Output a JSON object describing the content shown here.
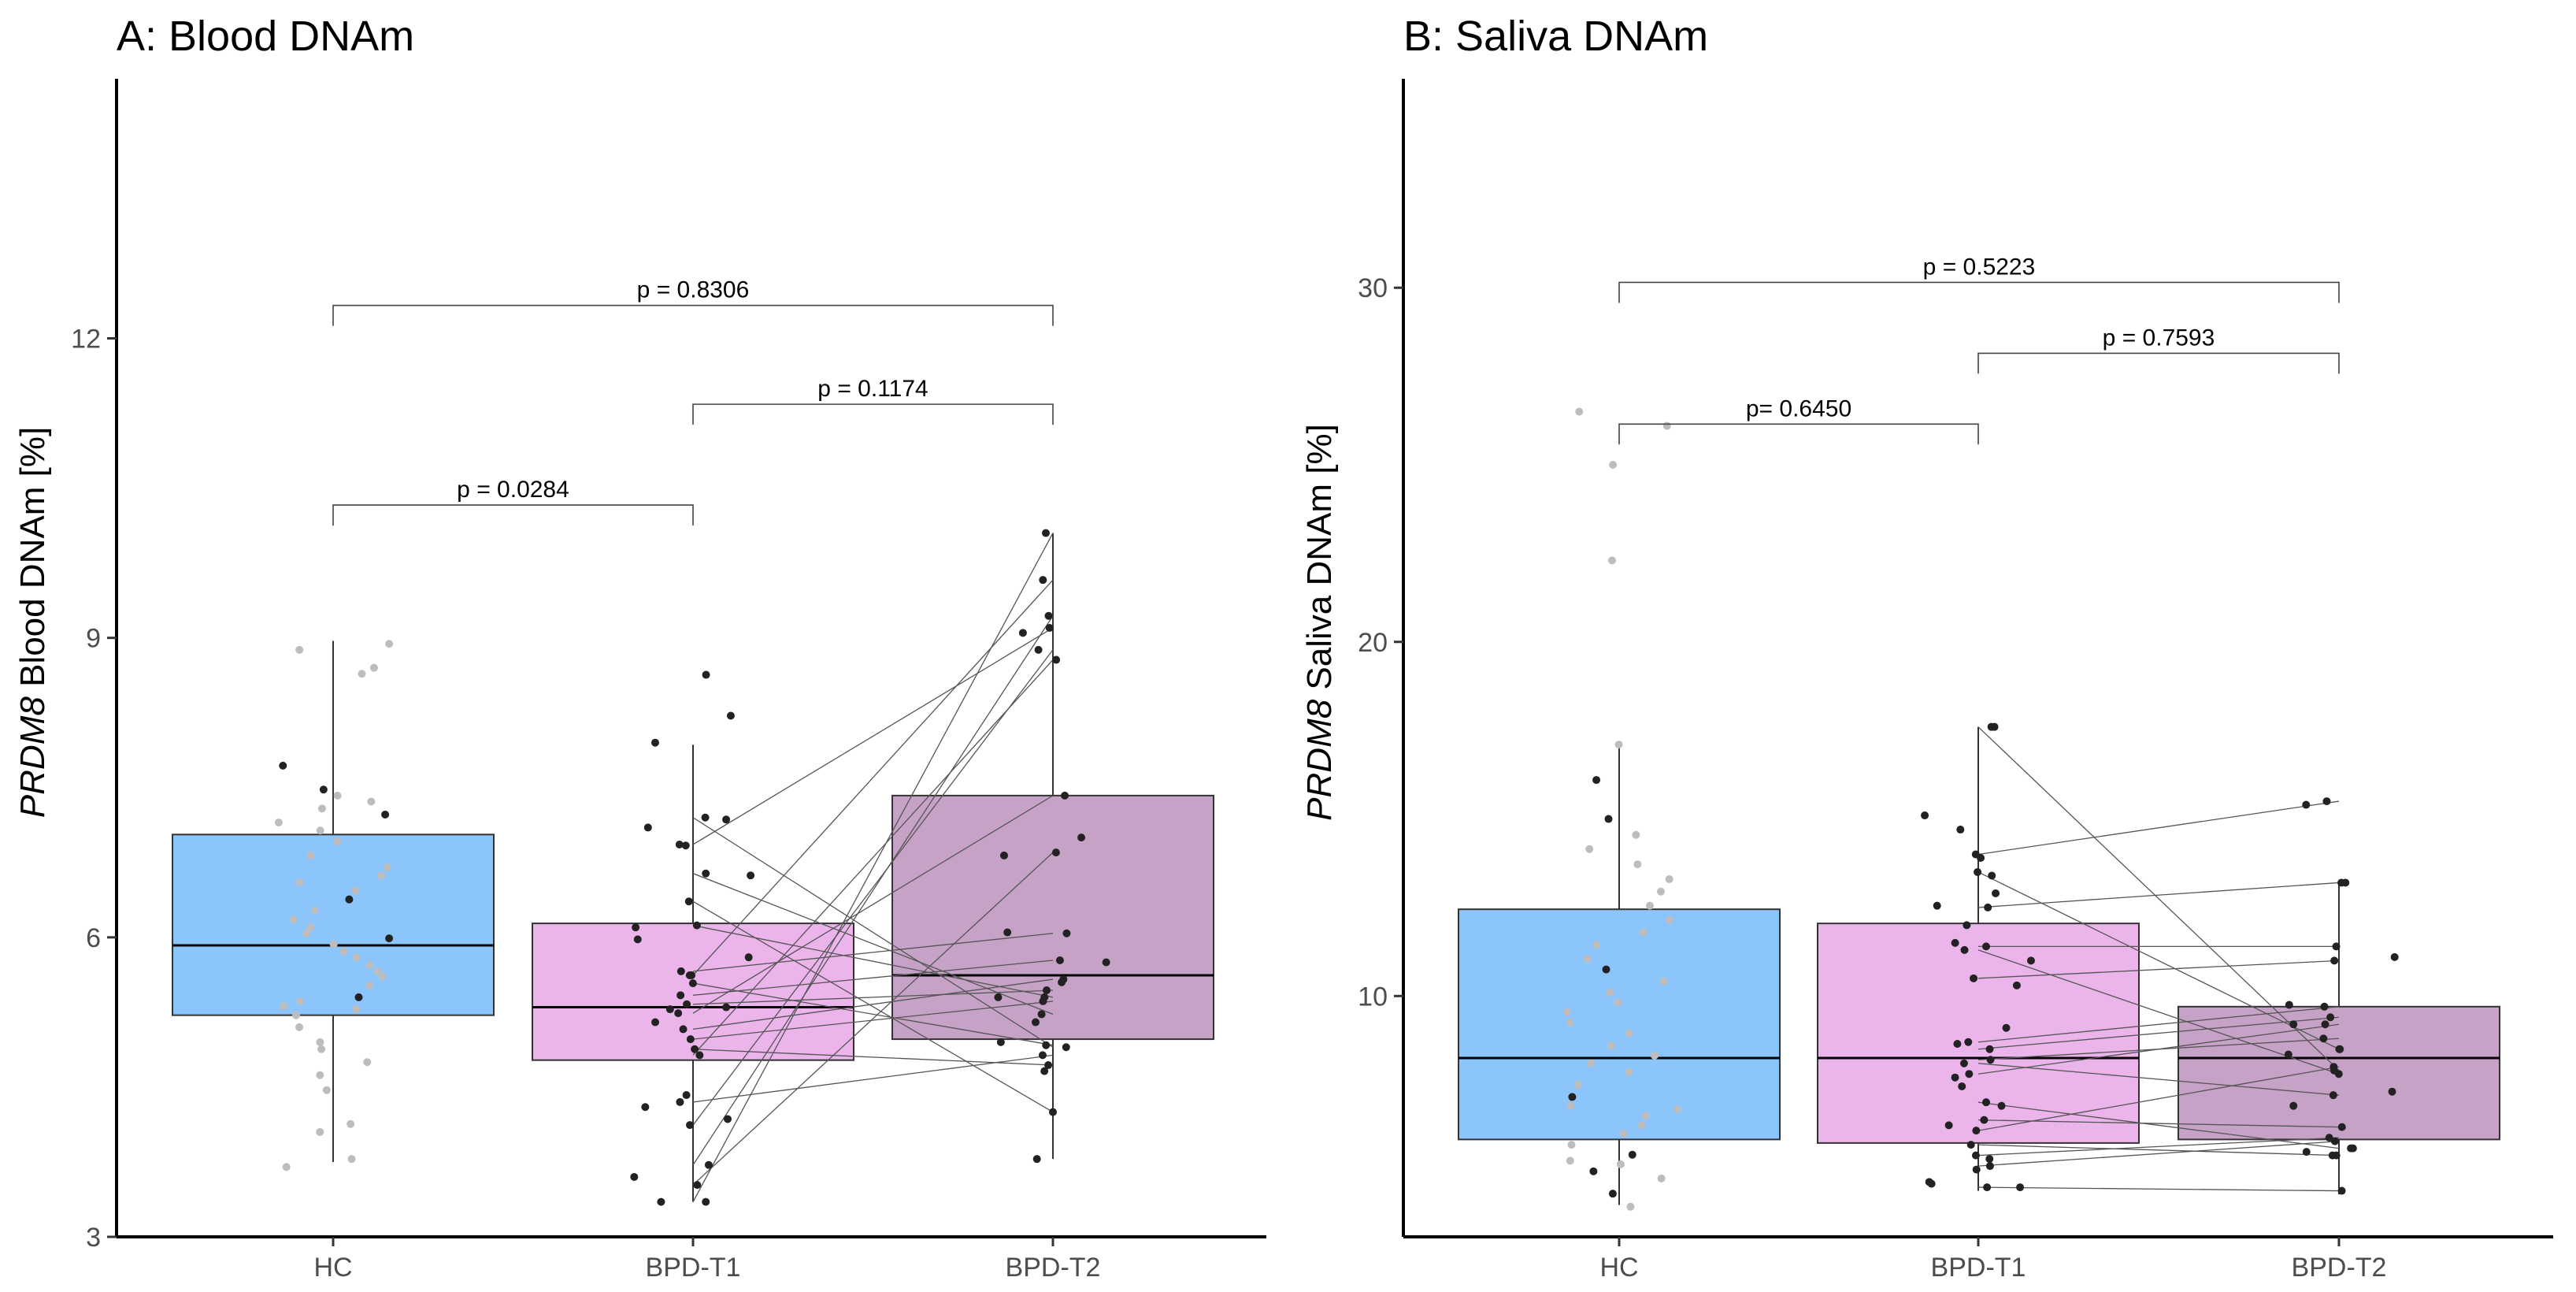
{
  "chart_data": [
    {
      "type": "boxplot",
      "title": "A: Blood DNAm",
      "ylabel_gene": "PRDM8",
      "ylabel_rest": " Blood DNAm [%]",
      "xlabel": "",
      "categories": [
        "HC",
        "BPD-T1",
        "BPD-T2"
      ],
      "ylim": [
        3,
        14.6
      ],
      "yticks": [
        3,
        6,
        9,
        12
      ],
      "box_colors": [
        "#8CC5FB",
        "#EBB5EC",
        "#C6A3C6"
      ],
      "boxes": [
        {
          "q1": 5.22,
          "median": 5.92,
          "q3": 7.03,
          "whisker_low": 3.75,
          "whisker_high": 8.97
        },
        {
          "q1": 4.77,
          "median": 5.3,
          "q3": 6.14,
          "whisker_low": 3.35,
          "whisker_high": 7.93
        },
        {
          "q1": 4.98,
          "median": 5.62,
          "q3": 7.42,
          "whisker_low": 3.78,
          "whisker_high": 10.05
        }
      ],
      "hc_points": [
        4.05,
        4.47,
        4.62,
        4.75,
        4.88,
        4.95,
        5.1,
        5.22,
        5.28,
        5.31,
        5.36,
        5.4,
        5.52,
        5.61,
        5.66,
        5.72,
        5.8,
        5.86,
        5.93,
        5.99,
        6.04,
        6.1,
        6.18,
        6.27,
        6.38,
        6.47,
        6.55,
        6.62,
        6.7,
        6.82,
        6.96,
        7.07,
        7.15,
        7.23,
        7.29,
        7.36,
        7.42,
        7.48,
        7.72,
        8.64,
        8.7,
        8.88,
        8.94,
        3.7,
        3.78,
        4.13
      ],
      "hc_dark_index": [
        19,
        24,
        11,
        37,
        38,
        33
      ],
      "pairs": [
        [
          7.2,
          4.9
        ],
        [
          6.93,
          9.1
        ],
        [
          6.64,
          5.23
        ],
        [
          6.36,
          4.25
        ],
        [
          6.12,
          5.4
        ],
        [
          5.66,
          6.04
        ],
        [
          5.62,
          9.58
        ],
        [
          5.54,
          4.92
        ],
        [
          5.42,
          5.77
        ],
        [
          5.33,
          5.47
        ],
        [
          5.24,
          7.42
        ],
        [
          5.08,
          5.58
        ],
        [
          4.98,
          5.36
        ],
        [
          4.88,
          4.72
        ],
        [
          4.82,
          8.78
        ],
        [
          4.35,
          4.82
        ],
        [
          4.12,
          8.88
        ],
        [
          3.72,
          9.22
        ],
        [
          3.52,
          6.85
        ],
        [
          3.35,
          10.05
        ]
      ],
      "t1_extra_points": [
        8.63,
        8.22,
        7.95,
        7.18,
        7.1,
        6.62,
        5.98,
        5.8,
        5.62,
        5.3,
        4.18,
        4.3,
        4.42,
        3.6,
        3.35,
        6.92,
        6.1,
        5.28,
        5.15
      ],
      "t2_extra_points": [
        9.05,
        7.0,
        6.82,
        6.05,
        5.75,
        5.55,
        5.4,
        5.15,
        4.95,
        4.66,
        3.78
      ],
      "annotations": [
        {
          "text": "p = 0.0284",
          "from": "HC",
          "to": "BPD-T1",
          "y": 10.33
        },
        {
          "text": "p = 0.1174",
          "from": "BPD-T1",
          "to": "BPD-T2",
          "y": 11.34
        },
        {
          "text": "p = 0.8306",
          "from": "HC",
          "to": "BPD-T2",
          "y": 12.33
        }
      ]
    },
    {
      "type": "boxplot",
      "title": "B: Saliva DNAm",
      "ylabel_gene": "PRDM8",
      "ylabel_rest": " Saliva DNAm [%]",
      "xlabel": "",
      "categories": [
        "HC",
        "BPD-T1",
        "BPD-T2"
      ],
      "ylim": [
        3.2,
        35.9
      ],
      "yticks": [
        10,
        20,
        30
      ],
      "box_colors": [
        "#8CC5FB",
        "#EBB5EC",
        "#C6A3C6"
      ],
      "boxes": [
        {
          "q1": 5.95,
          "median": 8.25,
          "q3": 12.45,
          "whisker_low": 4.1,
          "whisker_high": 17.1
        },
        {
          "q1": 5.85,
          "median": 8.25,
          "q3": 12.05,
          "whisker_low": 4.5,
          "whisker_high": 17.6
        },
        {
          "q1": 5.95,
          "median": 8.25,
          "q3": 9.7,
          "whisker_low": 4.4,
          "whisker_high": 13.2
        }
      ],
      "hc_points": [
        4.05,
        4.42,
        4.85,
        5.25,
        5.52,
        5.8,
        6.12,
        6.35,
        6.62,
        6.9,
        7.15,
        7.5,
        7.85,
        8.1,
        8.32,
        8.6,
        8.95,
        9.25,
        9.55,
        9.82,
        10.1,
        10.42,
        10.75,
        11.05,
        11.45,
        11.8,
        12.15,
        12.55,
        12.95,
        13.3,
        13.72,
        14.15,
        14.55,
        15.0,
        16.1,
        17.1,
        22.3,
        25.0,
        26.1,
        26.5,
        5.35,
        5.05,
        6.8
      ],
      "hc_dark_index": [
        1,
        4,
        10,
        22,
        33,
        34,
        41
      ],
      "pairs": [
        [
          17.6,
          7.9
        ],
        [
          14.0,
          15.5
        ],
        [
          13.5,
          8.5
        ],
        [
          12.5,
          13.2
        ],
        [
          11.4,
          11.4
        ],
        [
          11.3,
          7.8
        ],
        [
          10.5,
          11.0
        ],
        [
          8.7,
          9.7
        ],
        [
          8.5,
          9.4
        ],
        [
          8.2,
          8.8
        ],
        [
          8.1,
          7.2
        ],
        [
          7.8,
          9.2
        ],
        [
          7.0,
          5.7
        ],
        [
          6.5,
          6.3
        ],
        [
          6.2,
          8.0
        ],
        [
          5.8,
          5.5
        ],
        [
          5.5,
          6.0
        ],
        [
          5.2,
          5.9
        ],
        [
          4.6,
          4.5
        ]
      ],
      "t1_extra_points": [
        17.6,
        15.1,
        14.7,
        13.9,
        13.4,
        12.9,
        12.55,
        12.0,
        11.5,
        11.0,
        10.3,
        9.1,
        8.65,
        7.7,
        7.45,
        6.9,
        6.35,
        5.4,
        5.1,
        4.75,
        4.6,
        4.7
      ],
      "t2_extra_points": [
        15.4,
        13.2,
        11.1,
        9.75,
        9.2,
        8.5,
        8.35,
        7.3,
        6.9,
        5.7,
        5.5,
        5.6
      ]
    },
    {
      "annotations": [
        {
          "text": "p= 0.6450",
          "from": "HC",
          "to": "BPD-T1",
          "y": 26.15
        },
        {
          "text": "p = 0.7593",
          "from": "BPD-T1",
          "to": "BPD-T2",
          "y": 28.15
        },
        {
          "text": "p = 0.5223",
          "from": "HC",
          "to": "BPD-T2",
          "y": 30.15
        }
      ]
    }
  ]
}
